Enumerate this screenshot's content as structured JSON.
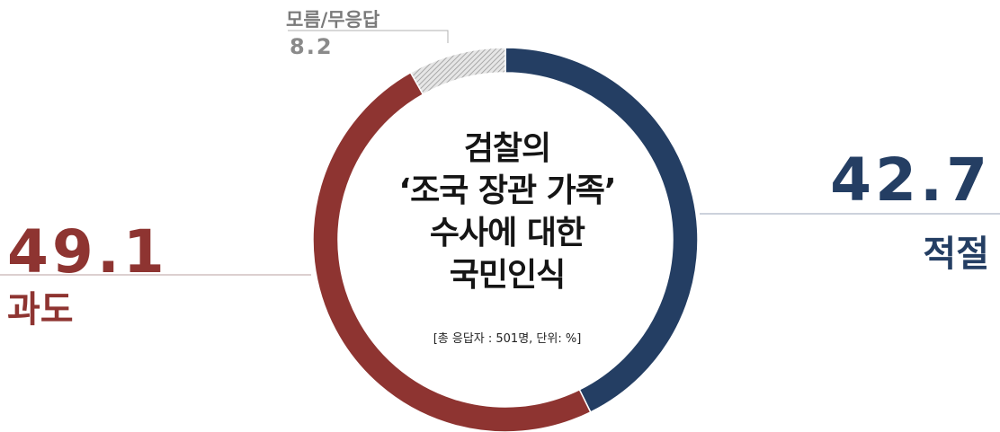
{
  "chart_data": {
    "type": "donut",
    "title_lines": [
      "검찰의",
      "‘조국 장관 가족’",
      "수사에 대한",
      "국민인식"
    ],
    "note": "[총 응답자 : 501명, 단위: %]",
    "unit": "%",
    "slices": [
      {
        "label": "적절",
        "value": 42.7,
        "display": "42.7",
        "color": "#243e63"
      },
      {
        "label": "과도",
        "value": 49.1,
        "display": "49.1",
        "color": "#8e3431"
      },
      {
        "label": "모름/무응답",
        "value": 8.2,
        "display": "8.2",
        "color": "#c8c8c8",
        "pattern": "hatch"
      }
    ]
  }
}
